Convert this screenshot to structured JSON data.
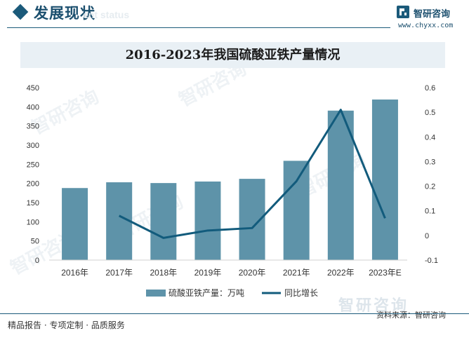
{
  "header": {
    "title": "发展现状",
    "subtitle": "ent status"
  },
  "brand": {
    "name": "智研咨询",
    "url": "www.chyxx.com",
    "watermark": "智研咨询",
    "colors": {
      "primary": "#1b5a7a",
      "bar": "#5e93a9",
      "line": "#125b7c"
    }
  },
  "footer": {
    "left": "精品报告 · 专项定制 · 品质服务",
    "source": "资料来源：智研咨询",
    "watermark": "智研咨询"
  },
  "chart_data": {
    "type": "bar",
    "title": "2016-2023年我国硫酸亚铁产量情况",
    "categories": [
      "2016年",
      "2017年",
      "2018年",
      "2019年",
      "2020年",
      "2021年",
      "2022年",
      "2023年E"
    ],
    "series": [
      {
        "name": "硫酸亚铁产量：万吨",
        "type": "bar",
        "axis": "left",
        "values": [
          188,
          203,
          201,
          205,
          212,
          259,
          390,
          419
        ]
      },
      {
        "name": "同比增长",
        "type": "line",
        "axis": "right",
        "values": [
          null,
          0.08,
          -0.01,
          0.02,
          0.03,
          0.22,
          0.51,
          0.07
        ]
      }
    ],
    "y_left": {
      "ylim": [
        0,
        450
      ],
      "ticks": [
        "0",
        "50",
        "100",
        "150",
        "200",
        "250",
        "300",
        "350",
        "400",
        "450"
      ]
    },
    "y_right": {
      "ylim": [
        -0.1,
        0.6
      ],
      "ticks": [
        "-0.1",
        "0",
        "0.1",
        "0.2",
        "0.3",
        "0.4",
        "0.5",
        "0.6"
      ]
    },
    "legend_position": "bottom",
    "grid": false
  }
}
